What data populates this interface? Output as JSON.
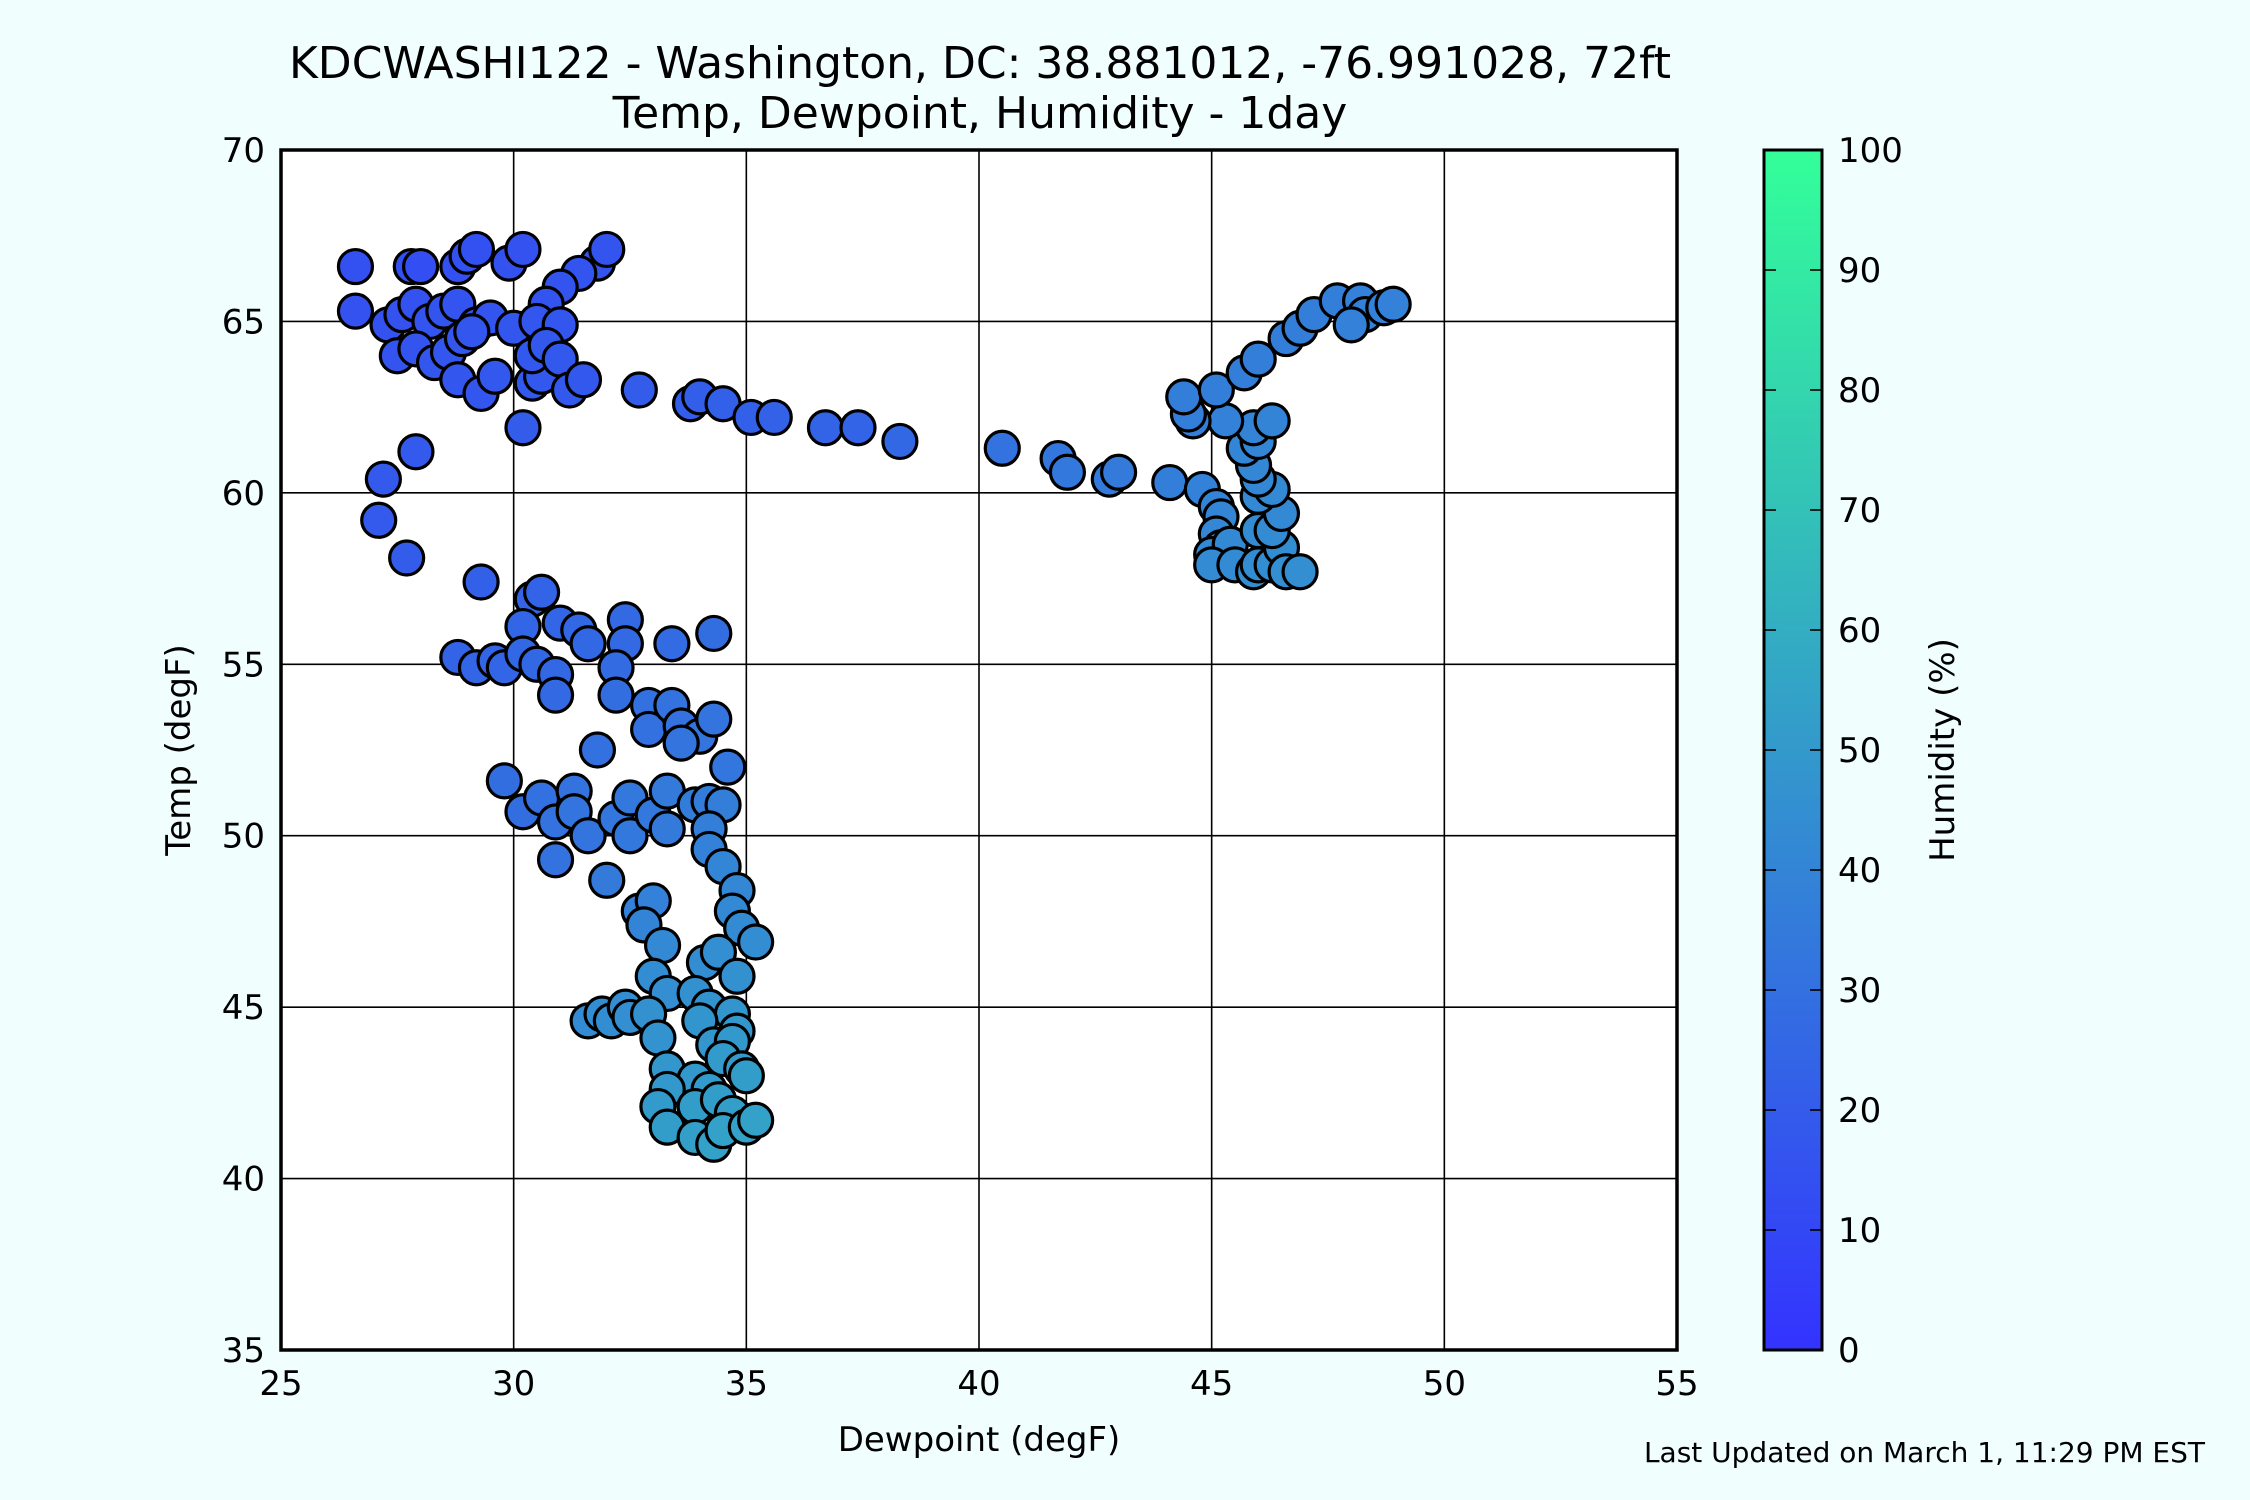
{
  "chart_data": {
    "type": "scatter",
    "title": "KDCWASHI122 - Washington, DC: 38.881012, -76.991028, 72ft",
    "subtitle": "Temp, Dewpoint, Humidity - 1day",
    "xlabel": "Dewpoint (degF)",
    "ylabel": "Temp (degF)",
    "xlim": [
      25,
      55
    ],
    "ylim": [
      35,
      70
    ],
    "xticks": [
      "25",
      "30",
      "35",
      "40",
      "45",
      "50",
      "55"
    ],
    "yticks": [
      "35",
      "40",
      "45",
      "50",
      "55",
      "60",
      "65",
      "70"
    ],
    "grid": true,
    "colorbar": {
      "label": "Humidity (%)",
      "range": [
        0,
        100
      ],
      "ticks": [
        "0",
        "10",
        "20",
        "30",
        "40",
        "50",
        "60",
        "70",
        "80",
        "90",
        "100"
      ],
      "color_low": "#3333ff",
      "color_high": "#33ff99"
    },
    "points": [
      [
        26.6,
        66.6,
        14
      ],
      [
        27.8,
        66.6,
        14
      ],
      [
        28.0,
        66.6,
        13
      ],
      [
        28.8,
        66.6,
        14
      ],
      [
        29.0,
        66.9,
        14
      ],
      [
        29.2,
        67.1,
        14
      ],
      [
        29.9,
        66.7,
        15
      ],
      [
        30.2,
        67.1,
        15
      ],
      [
        31.8,
        66.7,
        16
      ],
      [
        32.0,
        67.1,
        16
      ],
      [
        31.4,
        66.4,
        16
      ],
      [
        31.0,
        66.0,
        16
      ],
      [
        30.7,
        65.5,
        16
      ],
      [
        26.6,
        65.3,
        15
      ],
      [
        27.3,
        64.9,
        15
      ],
      [
        27.6,
        65.2,
        15
      ],
      [
        27.9,
        65.5,
        15
      ],
      [
        28.2,
        65.0,
        16
      ],
      [
        28.5,
        65.3,
        16
      ],
      [
        28.8,
        65.5,
        16
      ],
      [
        29.2,
        64.9,
        16
      ],
      [
        29.5,
        65.1,
        16
      ],
      [
        30.0,
        64.8,
        17
      ],
      [
        30.5,
        65.0,
        17
      ],
      [
        31.0,
        64.9,
        17
      ],
      [
        27.5,
        64.0,
        16
      ],
      [
        27.9,
        64.2,
        16
      ],
      [
        28.3,
        63.8,
        17
      ],
      [
        28.6,
        64.1,
        17
      ],
      [
        28.9,
        64.5,
        17
      ],
      [
        29.1,
        64.7,
        17
      ],
      [
        28.8,
        63.3,
        17
      ],
      [
        29.3,
        62.9,
        17
      ],
      [
        29.6,
        63.4,
        18
      ],
      [
        30.4,
        63.2,
        18
      ],
      [
        30.6,
        63.4,
        18
      ],
      [
        30.4,
        64.0,
        18
      ],
      [
        30.7,
        64.3,
        18
      ],
      [
        31.0,
        63.9,
        18
      ],
      [
        31.2,
        63.0,
        18
      ],
      [
        31.5,
        63.3,
        18
      ],
      [
        32.7,
        63.0,
        20
      ],
      [
        33.8,
        62.6,
        21
      ],
      [
        34.0,
        62.8,
        21
      ],
      [
        34.5,
        62.6,
        22
      ],
      [
        35.1,
        62.2,
        22
      ],
      [
        35.6,
        62.2,
        23
      ],
      [
        36.7,
        61.9,
        24
      ],
      [
        37.4,
        61.9,
        24
      ],
      [
        38.3,
        61.5,
        26
      ],
      [
        30.2,
        61.9,
        20
      ],
      [
        27.9,
        61.2,
        19
      ],
      [
        27.2,
        60.4,
        19
      ],
      [
        27.1,
        59.2,
        19
      ],
      [
        27.7,
        58.1,
        20
      ],
      [
        29.3,
        57.4,
        22
      ],
      [
        30.4,
        56.9,
        24
      ],
      [
        30.6,
        57.1,
        24
      ],
      [
        30.2,
        56.1,
        25
      ],
      [
        31.0,
        56.2,
        25
      ],
      [
        31.4,
        56.0,
        26
      ],
      [
        31.6,
        55.6,
        26
      ],
      [
        32.4,
        56.3,
        27
      ],
      [
        32.4,
        55.6,
        27
      ],
      [
        33.4,
        55.6,
        28
      ],
      [
        34.3,
        55.9,
        29
      ],
      [
        28.8,
        55.2,
        24
      ],
      [
        29.2,
        54.9,
        25
      ],
      [
        29.6,
        55.1,
        25
      ],
      [
        29.8,
        54.9,
        25
      ],
      [
        30.2,
        55.3,
        26
      ],
      [
        30.5,
        55.0,
        26
      ],
      [
        30.9,
        54.7,
        26
      ],
      [
        30.9,
        54.1,
        27
      ],
      [
        32.2,
        54.9,
        28
      ],
      [
        32.2,
        54.1,
        29
      ],
      [
        32.9,
        53.8,
        30
      ],
      [
        32.9,
        53.1,
        30
      ],
      [
        33.4,
        53.8,
        31
      ],
      [
        33.6,
        53.2,
        31
      ],
      [
        34.0,
        52.9,
        32
      ],
      [
        34.3,
        53.4,
        32
      ],
      [
        33.6,
        52.7,
        32
      ],
      [
        34.6,
        52.0,
        33
      ],
      [
        31.8,
        52.5,
        30
      ],
      [
        29.8,
        51.6,
        29
      ],
      [
        30.2,
        50.7,
        29
      ],
      [
        30.6,
        51.1,
        30
      ],
      [
        30.9,
        50.4,
        31
      ],
      [
        31.3,
        51.3,
        31
      ],
      [
        31.3,
        50.7,
        32
      ],
      [
        31.6,
        50.0,
        32
      ],
      [
        30.9,
        49.3,
        31
      ],
      [
        32.2,
        50.5,
        33
      ],
      [
        32.5,
        50.0,
        34
      ],
      [
        32.5,
        51.1,
        34
      ],
      [
        33.0,
        50.6,
        34
      ],
      [
        33.3,
        51.3,
        35
      ],
      [
        33.3,
        50.2,
        35
      ],
      [
        33.9,
        50.9,
        36
      ],
      [
        34.2,
        51.0,
        36
      ],
      [
        34.5,
        50.9,
        37
      ],
      [
        34.2,
        50.2,
        37
      ],
      [
        34.2,
        49.6,
        38
      ],
      [
        32.0,
        48.7,
        35
      ],
      [
        32.7,
        47.8,
        38
      ],
      [
        33.0,
        48.1,
        38
      ],
      [
        32.8,
        47.4,
        39
      ],
      [
        34.5,
        49.1,
        40
      ],
      [
        34.8,
        48.4,
        41
      ],
      [
        34.7,
        47.8,
        42
      ],
      [
        34.9,
        47.3,
        43
      ],
      [
        35.2,
        46.9,
        44
      ],
      [
        33.2,
        46.8,
        42
      ],
      [
        34.1,
        46.3,
        44
      ],
      [
        34.4,
        46.6,
        45
      ],
      [
        34.8,
        45.9,
        46
      ],
      [
        33.0,
        45.9,
        44
      ],
      [
        33.3,
        45.4,
        45
      ],
      [
        33.9,
        45.4,
        46
      ],
      [
        34.2,
        45.0,
        47
      ],
      [
        34.7,
        44.8,
        48
      ],
      [
        34.8,
        44.3,
        49
      ],
      [
        31.6,
        44.6,
        43
      ],
      [
        31.9,
        44.8,
        44
      ],
      [
        32.1,
        44.6,
        44
      ],
      [
        32.4,
        45.0,
        45
      ],
      [
        32.5,
        44.7,
        45
      ],
      [
        32.9,
        44.8,
        46
      ],
      [
        33.1,
        44.1,
        47
      ],
      [
        34.0,
        44.6,
        48
      ],
      [
        34.3,
        43.9,
        49
      ],
      [
        34.7,
        44.0,
        50
      ],
      [
        34.5,
        43.5,
        51
      ],
      [
        34.9,
        43.2,
        51
      ],
      [
        35.0,
        43.0,
        52
      ],
      [
        33.3,
        43.2,
        49
      ],
      [
        33.9,
        42.9,
        50
      ],
      [
        34.2,
        42.6,
        51
      ],
      [
        33.3,
        42.6,
        50
      ],
      [
        33.1,
        42.1,
        51
      ],
      [
        33.9,
        42.1,
        52
      ],
      [
        34.4,
        42.3,
        52
      ],
      [
        34.7,
        41.9,
        53
      ],
      [
        33.3,
        41.5,
        52
      ],
      [
        33.9,
        41.2,
        53
      ],
      [
        34.3,
        41.0,
        54
      ],
      [
        34.5,
        41.4,
        54
      ],
      [
        35.0,
        41.5,
        54
      ],
      [
        35.2,
        41.7,
        54
      ],
      [
        40.5,
        61.3,
        31
      ],
      [
        41.7,
        61.0,
        33
      ],
      [
        41.9,
        60.6,
        34
      ],
      [
        42.8,
        60.4,
        35
      ],
      [
        43.0,
        60.6,
        35
      ],
      [
        44.1,
        60.3,
        37
      ],
      [
        44.8,
        60.1,
        38
      ],
      [
        45.1,
        59.6,
        39
      ],
      [
        45.2,
        59.3,
        40
      ],
      [
        45.1,
        58.8,
        41
      ],
      [
        45.2,
        58.4,
        41
      ],
      [
        45.0,
        58.2,
        42
      ],
      [
        45.4,
        58.5,
        42
      ],
      [
        45.0,
        57.9,
        43
      ],
      [
        45.5,
        57.9,
        43
      ],
      [
        45.9,
        57.7,
        44
      ],
      [
        46.0,
        57.9,
        44
      ],
      [
        46.3,
        57.9,
        44
      ],
      [
        46.5,
        58.4,
        44
      ],
      [
        46.6,
        57.7,
        45
      ],
      [
        46.9,
        57.7,
        45
      ],
      [
        46.0,
        58.9,
        43
      ],
      [
        46.3,
        58.9,
        43
      ],
      [
        46.5,
        59.4,
        42
      ],
      [
        46.0,
        59.9,
        42
      ],
      [
        46.3,
        60.1,
        42
      ],
      [
        46.0,
        60.4,
        41
      ],
      [
        45.9,
        60.8,
        41
      ],
      [
        45.7,
        61.3,
        40
      ],
      [
        46.0,
        61.5,
        40
      ],
      [
        45.9,
        61.9,
        39
      ],
      [
        46.3,
        62.1,
        39
      ],
      [
        45.3,
        62.1,
        38
      ],
      [
        44.6,
        62.1,
        37
      ],
      [
        44.5,
        62.3,
        37
      ],
      [
        44.4,
        62.8,
        37
      ],
      [
        45.1,
        63.0,
        37
      ],
      [
        45.7,
        63.5,
        37
      ],
      [
        46.0,
        63.9,
        37
      ],
      [
        46.6,
        64.5,
        37
      ],
      [
        46.9,
        64.8,
        37
      ],
      [
        47.2,
        65.2,
        37
      ],
      [
        47.7,
        65.6,
        37
      ],
      [
        48.2,
        65.6,
        38
      ],
      [
        48.3,
        65.2,
        38
      ],
      [
        48.0,
        64.9,
        38
      ],
      [
        48.7,
        65.4,
        38
      ],
      [
        48.9,
        65.5,
        38
      ]
    ],
    "footer": "Last Updated on March 1, 11:29 PM EST"
  }
}
